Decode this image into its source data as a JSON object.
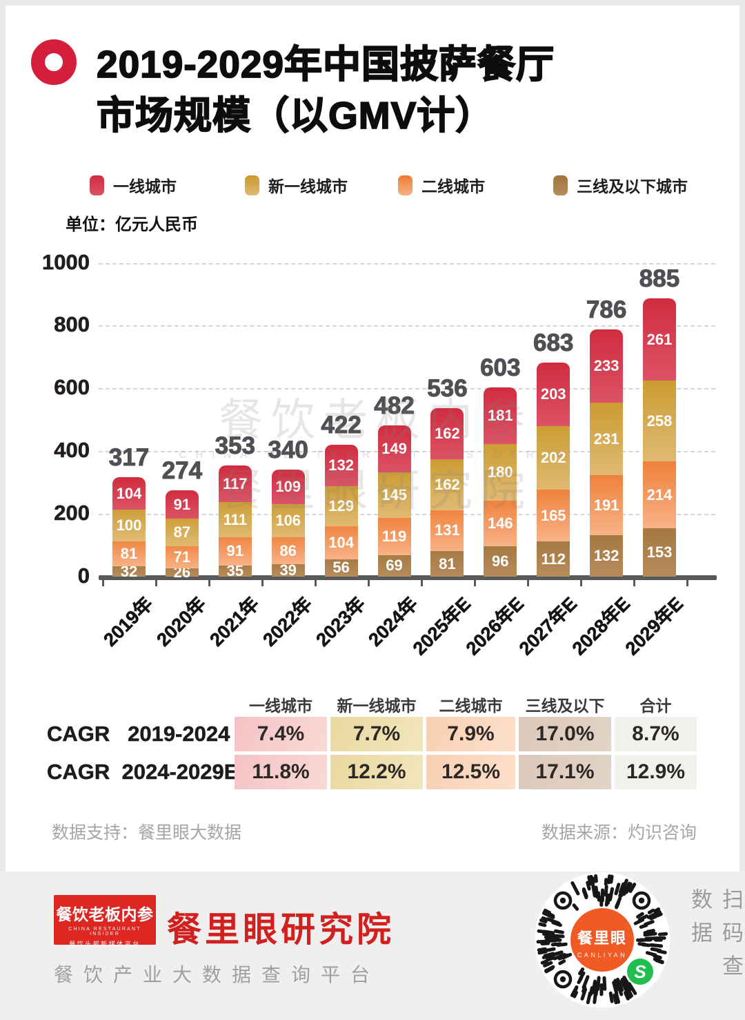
{
  "page": {
    "title_line1": "2019-2029年中国披萨餐厅",
    "title_line2": "市场规模（以GMV计）",
    "unit_label": "单位：亿元人民币"
  },
  "legend": [
    {
      "label": "一线城市",
      "color_top": "#d02c3f",
      "color_bottom": "#dd5265"
    },
    {
      "label": "新一线城市",
      "color_top": "#c9992b",
      "color_bottom": "#e0ba74"
    },
    {
      "label": "二线城市",
      "color_top": "#ee7c33",
      "color_bottom": "#f8b287"
    },
    {
      "label": "三线及以下城市",
      "color_top": "#a2753c",
      "color_bottom": "#b68c5c"
    }
  ],
  "chart_data": {
    "type": "bar",
    "stacked": true,
    "title": "2019-2029年中国披萨餐厅市场规模（以GMV计）",
    "ylabel": "亿元人民币",
    "categories": [
      "2019年",
      "2020年",
      "2021年",
      "2022年",
      "2023年",
      "2024年",
      "2025年E",
      "2026年E",
      "2027年E",
      "2028年E",
      "2029年E"
    ],
    "series": [
      {
        "name": "一线城市",
        "values": [
          104,
          91,
          117,
          109,
          132,
          149,
          162,
          181,
          203,
          233,
          261
        ]
      },
      {
        "name": "新一线城市",
        "values": [
          100,
          87,
          111,
          106,
          129,
          145,
          162,
          180,
          202,
          231,
          258
        ]
      },
      {
        "name": "二线城市",
        "values": [
          81,
          71,
          91,
          86,
          104,
          119,
          131,
          146,
          165,
          191,
          214
        ]
      },
      {
        "name": "三线及以下城市",
        "values": [
          32,
          26,
          35,
          39,
          56,
          69,
          81,
          96,
          112,
          132,
          153
        ]
      }
    ],
    "totals": [
      317,
      274,
      353,
      340,
      422,
      482,
      536,
      603,
      683,
      786,
      885
    ],
    "ylim": [
      0,
      1000
    ],
    "yticks": [
      0,
      200,
      400,
      600,
      800,
      1000
    ],
    "grid": "horizontal dashed",
    "legend_position": "top"
  },
  "watermark": {
    "line1": "餐饮老板内参",
    "line2": "CHINA RESTAURANT INSIDER ★",
    "line3": "餐里眼研究院"
  },
  "cagr_table": {
    "headers": [
      "一线城市",
      "新一线城市",
      "二线城市",
      "三线及以下城市",
      "合计"
    ],
    "cell_colors": [
      [
        "#f4c2c6",
        "#f9d9d4"
      ],
      [
        "#e9d89f",
        "#f1e6bd"
      ],
      [
        "#f8cfb2",
        "#fce0cb"
      ],
      [
        "#dbc8ba",
        "#e3d4c7"
      ],
      [
        "#f1f1ee",
        "#f1f1ee"
      ]
    ],
    "rows": [
      {
        "label": "CAGR   2019-2024",
        "values": [
          "7.4%",
          "7.7%",
          "7.9%",
          "17.0%",
          "8.7%"
        ]
      },
      {
        "label": "CAGR  2024-2029E",
        "values": [
          "11.8%",
          "12.2%",
          "12.5%",
          "17.1%",
          "12.9%"
        ]
      }
    ]
  },
  "notes": {
    "left": "数据支持：餐里眼大数据",
    "right": "数据来源：灼识咨询"
  },
  "footer": {
    "logo_line1": "餐饮老板内参",
    "logo_line2": "CHINA RESTAURANT INSIDER",
    "logo_line3": "餐饮头部新媒体平台",
    "org_name": "餐里眼研究院",
    "tagline": "餐饮产业大数据查询平台",
    "qr_center_name": "餐里眼",
    "qr_center_sub": "CANLIYAN",
    "scan_label": "扫码查数据"
  },
  "colors": {
    "accent_red": "#d41e3c",
    "axis": "#58595b",
    "qr_center_orange": "#f15a24",
    "qr_badge_green": "#22bd4f",
    "footer_logo_red": "#dc2723",
    "org_name_red": "#d0211f"
  }
}
